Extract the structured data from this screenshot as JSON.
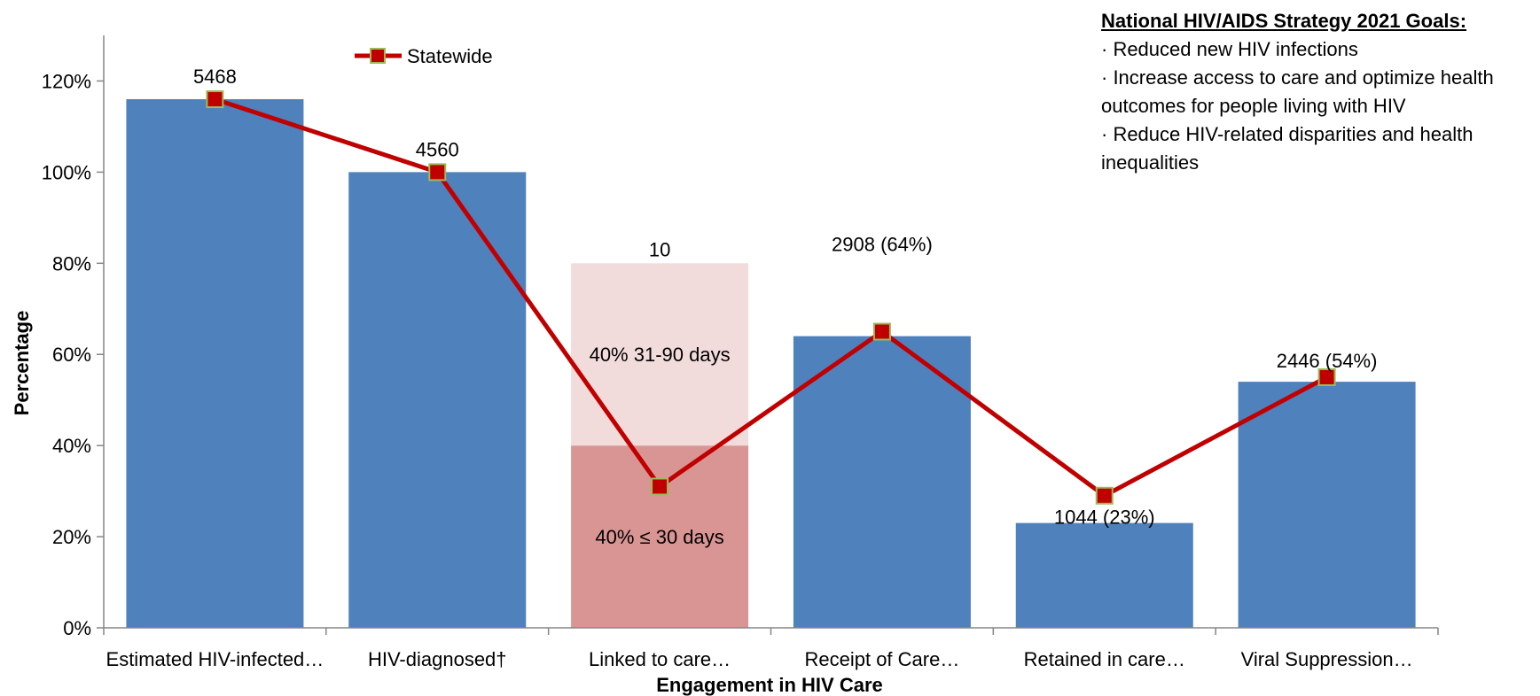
{
  "chart_data": {
    "type": "bar",
    "xlabel": "Engagement in HIV Care",
    "ylabel": "Percentage",
    "ylim": [
      0,
      1.3
    ],
    "yticks": [
      0,
      0.2,
      0.4,
      0.6,
      0.8,
      1.0,
      1.2
    ],
    "ytick_labels": [
      "0%",
      "20%",
      "40%",
      "60%",
      "80%",
      "100%",
      "120%"
    ],
    "grid": false,
    "legend_position": "top-center",
    "categories": [
      "Estimated HIV-infected…",
      "HIV-diagnosed†",
      "Linked to care…",
      "Receipt of Care…",
      "Retained in care…",
      "Viral Suppression…"
    ],
    "bars": [
      1.16,
      1.0,
      null,
      0.64,
      0.23,
      0.54
    ],
    "bar_labels": [
      "5468",
      "4560",
      "10",
      "2908 (64%)",
      "1044 (23%)",
      "2446 (54%)"
    ],
    "linkage_stack": [
      {
        "label": "40% ≤ 30 days",
        "value": 0.4,
        "color": "#d99594"
      },
      {
        "label": "40% 31-90 days",
        "value": 0.4,
        "color": "#f2dcdb"
      }
    ],
    "series": [
      {
        "name": "Statewide",
        "values": [
          1.16,
          1.0,
          0.31,
          0.65,
          0.29,
          0.55
        ],
        "color": "#c00000",
        "marker_color": "#c00000",
        "marker_edge": "#9bbb59"
      }
    ],
    "bar_color": "#4f81bd"
  },
  "goals": {
    "title": "National HIV/AIDS Strategy 2021 Goals:",
    "items": [
      "· Reduced new HIV infections",
      "· Increase access to care and optimize health outcomes for people living with HIV",
      "· Reduce HIV-related disparities and health inequalities"
    ]
  }
}
